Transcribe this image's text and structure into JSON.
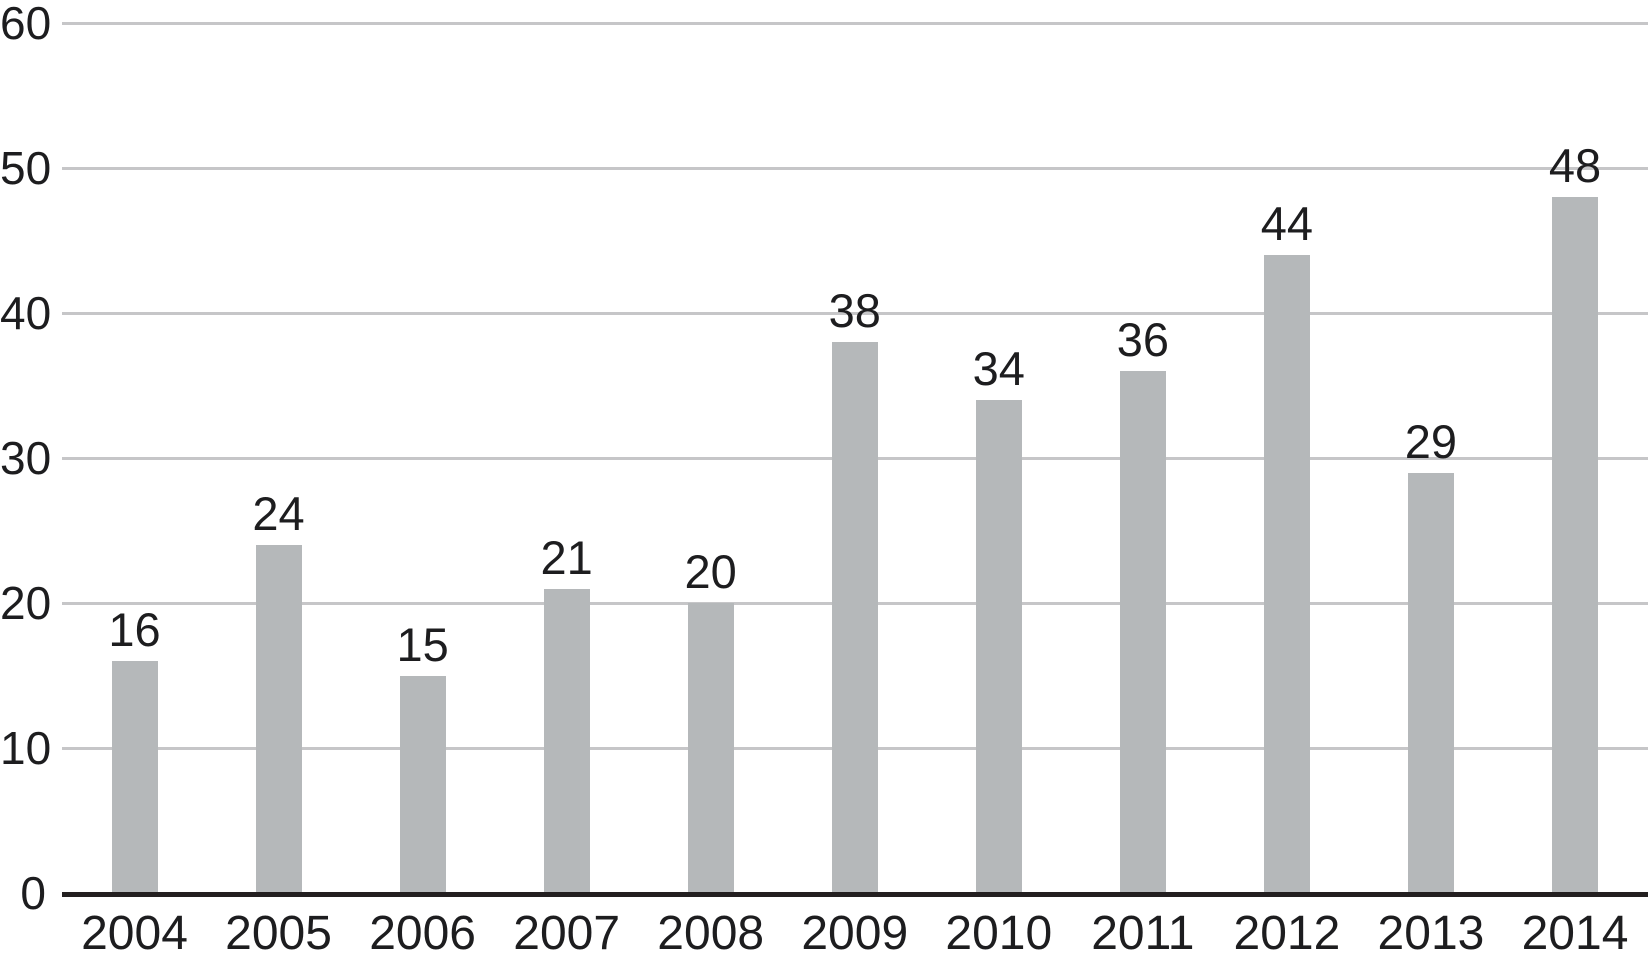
{
  "chart_data": {
    "type": "bar",
    "title": "",
    "xlabel": "",
    "ylabel": "",
    "categories": [
      "2004",
      "2005",
      "2006",
      "2007",
      "2008",
      "2009",
      "2010",
      "2011",
      "2012",
      "2013",
      "2014"
    ],
    "values": [
      16,
      24,
      15,
      21,
      20,
      38,
      34,
      36,
      44,
      29,
      48
    ],
    "ylim": [
      0,
      60
    ],
    "yticks": [
      0,
      10,
      20,
      30,
      40,
      50,
      60
    ],
    "grid": true,
    "legend": false,
    "value_labels_shown": true,
    "colors": {
      "bar": "#b5b8ba",
      "gridline": "#c6c6c8",
      "axis": "#231f20",
      "text": "#1d1d1f",
      "background": "#ffffff"
    }
  }
}
